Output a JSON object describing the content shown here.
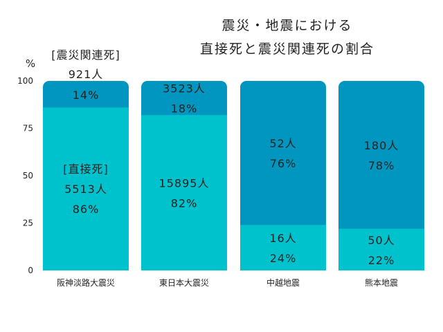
{
  "chart_data": {
    "type": "bar",
    "stacked": true,
    "percent": true,
    "title_lines": [
      "震災・地震における",
      "直接死と震災関連死の割合"
    ],
    "ylabel": "%",
    "ylim": [
      0,
      100
    ],
    "yticks": [
      0,
      25,
      50,
      75,
      100
    ],
    "categories": [
      "阪神淡路大震災",
      "東日本大震災",
      "中越地震",
      "熊本地震"
    ],
    "series": [
      {
        "name": "[直接死]",
        "color": "#00c2cc",
        "values": [
          86,
          82,
          24,
          22
        ],
        "counts": [
          "5513人",
          "15895人",
          "16人",
          "50人"
        ],
        "pcts": [
          "86%",
          "82%",
          "24%",
          "22%"
        ]
      },
      {
        "name": "[震災関連死]",
        "color": "#0096bf",
        "values": [
          14,
          18,
          76,
          78
        ],
        "counts": [
          "921人",
          "3523人",
          "52人",
          "180人"
        ],
        "pcts": [
          "14%",
          "18%",
          "76%",
          "78%"
        ]
      }
    ]
  }
}
